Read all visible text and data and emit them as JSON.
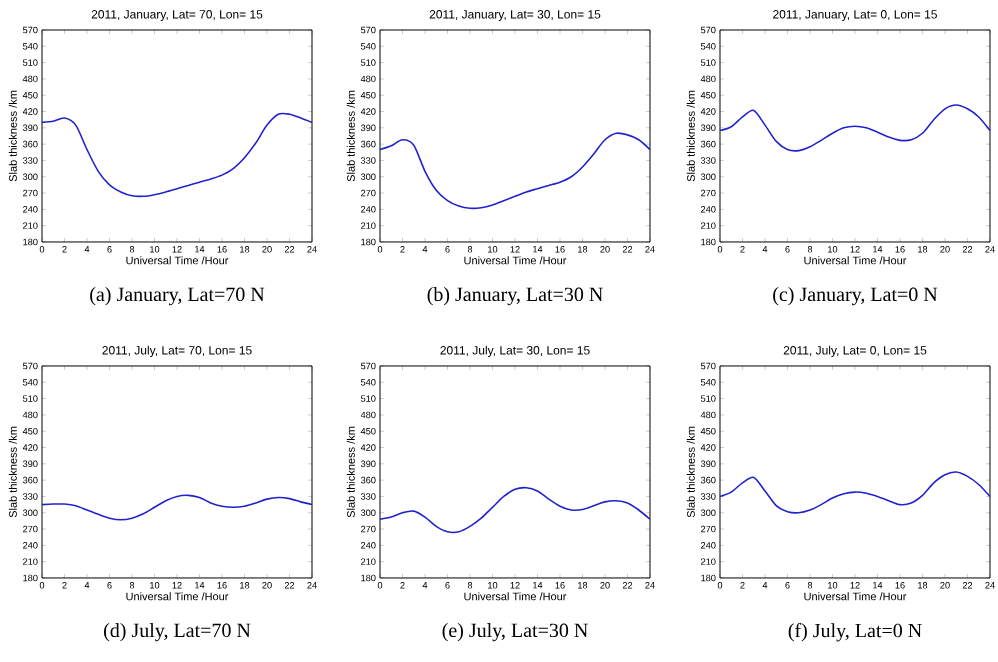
{
  "chart_data": [
    {
      "type": "line",
      "title": "2011, January, Lat= 70, Lon= 15",
      "xlabel": "Universal Time /Hour",
      "ylabel": "Slab thickness /km",
      "annotations": [
        "(a) January, Lat=70 N"
      ],
      "xlim": [
        0,
        24
      ],
      "ylim": [
        180,
        570
      ],
      "xticks": [
        0,
        2,
        4,
        6,
        8,
        10,
        12,
        14,
        16,
        18,
        20,
        22,
        24
      ],
      "yticks": [
        180,
        210,
        240,
        270,
        300,
        330,
        360,
        390,
        420,
        450,
        480,
        510,
        540,
        570
      ],
      "x": [
        0,
        1,
        2,
        3,
        4,
        5,
        6,
        7,
        8,
        9,
        10,
        11,
        12,
        13,
        14,
        15,
        16,
        17,
        18,
        19,
        20,
        21,
        22,
        23,
        24
      ],
      "series": [
        {
          "color": "#2222cc",
          "values": [
            400,
            402,
            408,
            395,
            350,
            310,
            285,
            272,
            265,
            264,
            267,
            272,
            278,
            284,
            290,
            296,
            303,
            315,
            335,
            362,
            395,
            415,
            415,
            408,
            400
          ]
        }
      ]
    },
    {
      "type": "line",
      "title": "2011, January, Lat= 30, Lon= 15",
      "xlabel": "Universal Time /Hour",
      "ylabel": "Slab thickness /km",
      "annotations": [
        "(b) January, Lat=30 N"
      ],
      "xlim": [
        0,
        24
      ],
      "ylim": [
        180,
        570
      ],
      "xticks": [
        0,
        2,
        4,
        6,
        8,
        10,
        12,
        14,
        16,
        18,
        20,
        22,
        24
      ],
      "yticks": [
        180,
        210,
        240,
        270,
        300,
        330,
        360,
        390,
        420,
        450,
        480,
        510,
        540,
        570
      ],
      "x": [
        0,
        1,
        2,
        3,
        4,
        5,
        6,
        7,
        8,
        9,
        10,
        11,
        12,
        13,
        14,
        15,
        16,
        17,
        18,
        19,
        20,
        21,
        22,
        23,
        24
      ],
      "series": [
        {
          "color": "#2222cc",
          "values": [
            350,
            357,
            368,
            358,
            310,
            275,
            256,
            246,
            242,
            243,
            248,
            256,
            264,
            272,
            278,
            284,
            290,
            300,
            318,
            342,
            368,
            380,
            377,
            368,
            350
          ]
        }
      ]
    },
    {
      "type": "line",
      "title": "2011, January, Lat= 0, Lon= 15",
      "xlabel": "Universal Time /Hour",
      "ylabel": "Slab thickness /km",
      "annotations": [
        "(c) January, Lat=0 N"
      ],
      "xlim": [
        0,
        24
      ],
      "ylim": [
        180,
        570
      ],
      "xticks": [
        0,
        2,
        4,
        6,
        8,
        10,
        12,
        14,
        16,
        18,
        20,
        22,
        24
      ],
      "yticks": [
        180,
        210,
        240,
        270,
        300,
        330,
        360,
        390,
        420,
        450,
        480,
        510,
        540,
        570
      ],
      "x": [
        0,
        1,
        2,
        3,
        4,
        5,
        6,
        7,
        8,
        9,
        10,
        11,
        12,
        13,
        14,
        15,
        16,
        17,
        18,
        19,
        20,
        21,
        22,
        23,
        24
      ],
      "series": [
        {
          "color": "#2222cc",
          "values": [
            385,
            392,
            410,
            422,
            395,
            365,
            350,
            348,
            355,
            367,
            380,
            390,
            393,
            390,
            382,
            373,
            367,
            368,
            380,
            405,
            425,
            432,
            425,
            410,
            385
          ]
        }
      ]
    },
    {
      "type": "line",
      "title": "2011, July, Lat= 70, Lon= 15",
      "xlabel": "Universal Time /Hour",
      "ylabel": "Slab thickness /km",
      "annotations": [
        "(d) July, Lat=70 N"
      ],
      "xlim": [
        0,
        24
      ],
      "ylim": [
        180,
        570
      ],
      "xticks": [
        0,
        2,
        4,
        6,
        8,
        10,
        12,
        14,
        16,
        18,
        20,
        22,
        24
      ],
      "yticks": [
        180,
        210,
        240,
        270,
        300,
        330,
        360,
        390,
        420,
        450,
        480,
        510,
        540,
        570
      ],
      "x": [
        0,
        1,
        2,
        3,
        4,
        5,
        6,
        7,
        8,
        9,
        10,
        11,
        12,
        13,
        14,
        15,
        16,
        17,
        18,
        19,
        20,
        21,
        22,
        23,
        24
      ],
      "series": [
        {
          "color": "#2222cc",
          "values": [
            315,
            316,
            316,
            313,
            305,
            297,
            290,
            287,
            290,
            298,
            310,
            322,
            330,
            332,
            328,
            318,
            312,
            310,
            312,
            318,
            325,
            328,
            326,
            320,
            315
          ]
        }
      ]
    },
    {
      "type": "line",
      "title": "2011, July, Lat= 30, Lon= 15",
      "xlabel": "Universal Time /Hour",
      "ylabel": "Slab thickness /km",
      "annotations": [
        "(e) July, Lat=30 N"
      ],
      "xlim": [
        0,
        24
      ],
      "ylim": [
        180,
        570
      ],
      "xticks": [
        0,
        2,
        4,
        6,
        8,
        10,
        12,
        14,
        16,
        18,
        20,
        22,
        24
      ],
      "yticks": [
        180,
        210,
        240,
        270,
        300,
        330,
        360,
        390,
        420,
        450,
        480,
        510,
        540,
        570
      ],
      "x": [
        0,
        1,
        2,
        3,
        4,
        5,
        6,
        7,
        8,
        9,
        10,
        11,
        12,
        13,
        14,
        15,
        16,
        17,
        18,
        19,
        20,
        21,
        22,
        23,
        24
      ],
      "series": [
        {
          "color": "#2222cc",
          "values": [
            288,
            292,
            300,
            303,
            292,
            275,
            265,
            265,
            275,
            290,
            310,
            330,
            343,
            346,
            340,
            325,
            312,
            305,
            306,
            313,
            320,
            322,
            318,
            305,
            288
          ]
        }
      ]
    },
    {
      "type": "line",
      "title": "2011, July, Lat= 0, Lon= 15",
      "xlabel": "Universal Time /Hour",
      "ylabel": "Slab thickness /km",
      "annotations": [
        "(f) July, Lat=0 N"
      ],
      "xlim": [
        0,
        24
      ],
      "ylim": [
        180,
        570
      ],
      "xticks": [
        0,
        2,
        4,
        6,
        8,
        10,
        12,
        14,
        16,
        18,
        20,
        22,
        24
      ],
      "yticks": [
        180,
        210,
        240,
        270,
        300,
        330,
        360,
        390,
        420,
        450,
        480,
        510,
        540,
        570
      ],
      "x": [
        0,
        1,
        2,
        3,
        4,
        5,
        6,
        7,
        8,
        9,
        10,
        11,
        12,
        13,
        14,
        15,
        16,
        17,
        18,
        19,
        20,
        21,
        22,
        23,
        24
      ],
      "series": [
        {
          "color": "#2222cc",
          "values": [
            330,
            338,
            355,
            365,
            340,
            313,
            302,
            300,
            305,
            315,
            327,
            335,
            338,
            336,
            330,
            322,
            315,
            318,
            332,
            355,
            370,
            375,
            367,
            352,
            330
          ]
        }
      ]
    }
  ]
}
